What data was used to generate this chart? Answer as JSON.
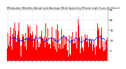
{
  "title": "Milwaukee Weather Actual and Average Wind Speed by Minute mph (Last 24 Hours)",
  "n_points": 1440,
  "background_color": "#ffffff",
  "bar_color": "#ff0000",
  "line_color": "#0000ff",
  "ylim": [
    0,
    25
  ],
  "yticks": [
    5,
    10,
    15,
    20,
    25
  ],
  "title_fontsize": 2.8,
  "tick_fontsize": 3.0,
  "line_width": 0.5,
  "bar_width": 1.0,
  "grid_color": "#aaaaaa",
  "spine_color": "#555555"
}
